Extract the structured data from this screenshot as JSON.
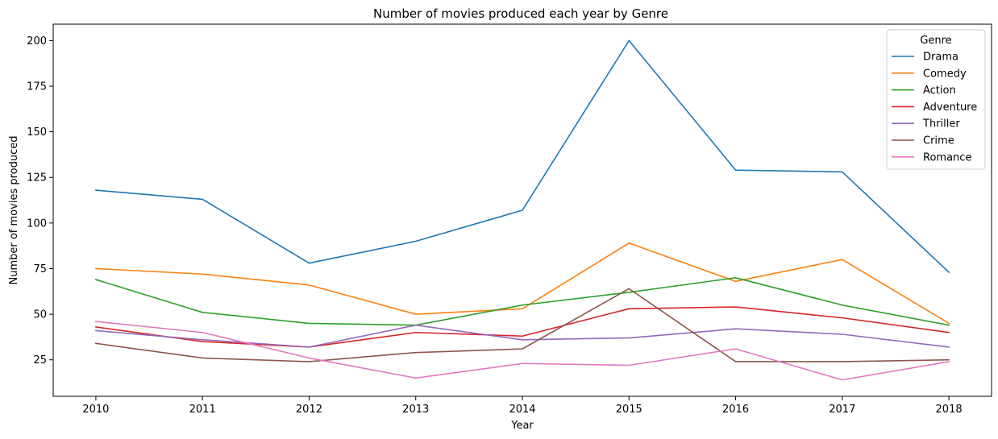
{
  "chart_data": {
    "type": "line",
    "title": "Number of movies produced each year by Genre",
    "xlabel": "Year",
    "ylabel": "Number of movies produced",
    "x": [
      2010,
      2011,
      2012,
      2013,
      2014,
      2015,
      2016,
      2017,
      2018
    ],
    "x_ticks": [
      "2010",
      "2011",
      "2012",
      "2013",
      "2014",
      "2015",
      "2016",
      "2017",
      "2018"
    ],
    "xlim": [
      2009.6,
      2018.4
    ],
    "ylim": [
      5,
      209
    ],
    "y_ticks": [
      25,
      50,
      75,
      100,
      125,
      150,
      175,
      200
    ],
    "y_tick_labels": [
      "25",
      "50",
      "75",
      "100",
      "125",
      "150",
      "175",
      "200"
    ],
    "grid": false,
    "legend": {
      "title": "Genre",
      "placement": "top-right"
    },
    "series": [
      {
        "name": "Drama",
        "color": "#1f77b4",
        "values": [
          118,
          113,
          78,
          90,
          107,
          200,
          129,
          128,
          73
        ]
      },
      {
        "name": "Comedy",
        "color": "#ff7f0e",
        "values": [
          75,
          72,
          66,
          50,
          53,
          89,
          68,
          80,
          45
        ]
      },
      {
        "name": "Action",
        "color": "#2ca02c",
        "values": [
          69,
          51,
          45,
          44,
          55,
          62,
          70,
          55,
          44
        ]
      },
      {
        "name": "Adventure",
        "color": "#d62728",
        "values": [
          43,
          35,
          32,
          40,
          38,
          53,
          54,
          48,
          40
        ]
      },
      {
        "name": "Thriller",
        "color": "#9467bd",
        "values": [
          41,
          36,
          32,
          44,
          36,
          37,
          42,
          39,
          32
        ]
      },
      {
        "name": "Crime",
        "color": "#8c564b",
        "values": [
          34,
          26,
          24,
          29,
          31,
          64,
          24,
          24,
          25
        ]
      },
      {
        "name": "Romance",
        "color": "#e377c2",
        "values": [
          46,
          40,
          26,
          15,
          23,
          22,
          31,
          14,
          24
        ]
      }
    ]
  }
}
